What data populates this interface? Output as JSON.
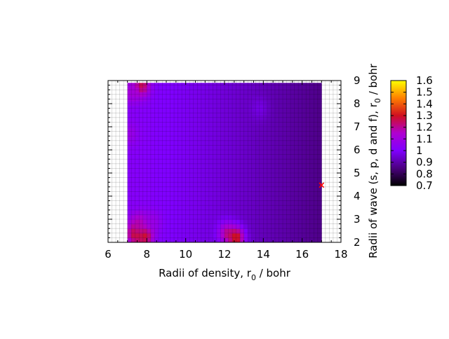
{
  "chart_data": {
    "type": "heatmap",
    "xlabel": {
      "main": "Radii of density, r",
      "sub": "0",
      "unit": " / bohr"
    },
    "ylabel": {
      "main": "Radii of wave (s, p, d and f), r",
      "sub": "0",
      "unit": " / bohr"
    },
    "xlim": [
      6,
      18
    ],
    "ylim": [
      2,
      9
    ],
    "xticks": [
      "6",
      "8",
      "10",
      "12",
      "14",
      "16",
      "18"
    ],
    "yticks": [
      "2",
      "3",
      "4",
      "5",
      "6",
      "7",
      "8",
      "9"
    ],
    "data_extent": {
      "x": [
        7,
        17
      ],
      "y": [
        2,
        8.9
      ]
    },
    "grid": "on",
    "colorbar": {
      "range": [
        0.7,
        1.6
      ],
      "ticks": [
        "0.7",
        "0.8",
        "0.9",
        "1",
        "1.1",
        "1.2",
        "1.3",
        "1.4",
        "1.5",
        "1.6"
      ],
      "palette": [
        "#000000",
        "#4b0080",
        "#8000ff",
        "#b000d0",
        "#d01020",
        "#ff8000",
        "#ffff00"
      ]
    },
    "surface": {
      "base_left": 1.02,
      "base_right": 0.86,
      "hotspots": [
        {
          "x": 7.7,
          "y": 8.8,
          "value": 1.28
        },
        {
          "x": 7.2,
          "y": 8.5,
          "value": 1.12
        },
        {
          "x": 7.1,
          "y": 6.7,
          "value": 1.08
        },
        {
          "x": 7.4,
          "y": 2.4,
          "value": 1.3
        },
        {
          "x": 7.9,
          "y": 2.35,
          "value": 1.33
        },
        {
          "x": 7.6,
          "y": 2.8,
          "value": 1.18
        },
        {
          "x": 8.3,
          "y": 2.9,
          "value": 1.08
        },
        {
          "x": 12.1,
          "y": 2.4,
          "value": 1.18
        },
        {
          "x": 12.6,
          "y": 2.2,
          "value": 1.32
        },
        {
          "x": 13.8,
          "y": 7.8,
          "value": 0.97
        }
      ]
    },
    "marker": {
      "x": 17,
      "y": 4.5,
      "symbol": "×",
      "color": "#ff0000"
    }
  }
}
